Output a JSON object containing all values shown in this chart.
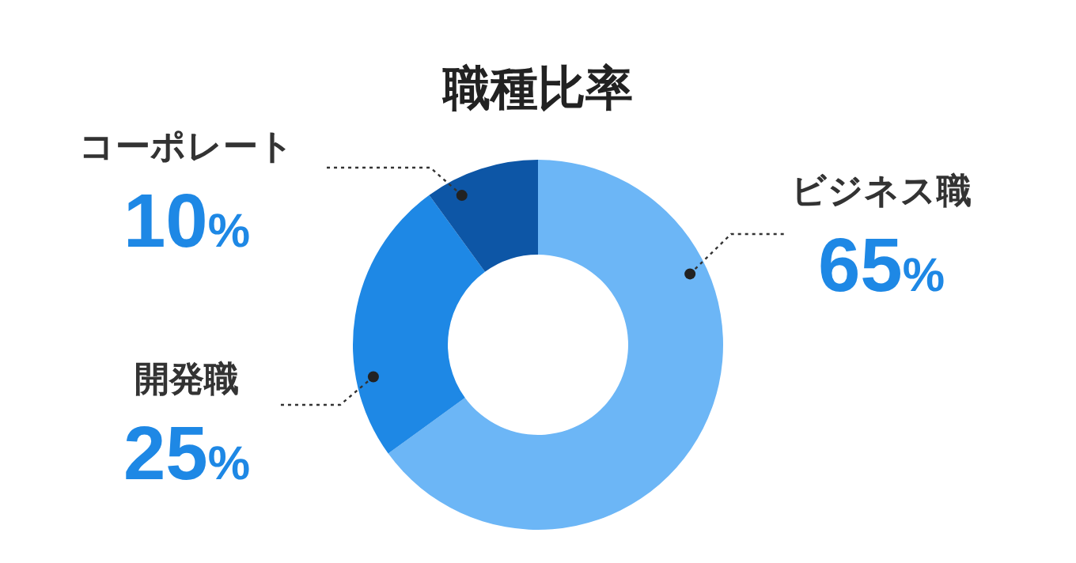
{
  "chart_data": {
    "type": "donut",
    "title": "職種比率",
    "categories": [
      "ビジネス職",
      "開発職",
      "コーポレート"
    ],
    "values": [
      65,
      25,
      10
    ],
    "value_labels": [
      "65%",
      "25%",
      "10%"
    ],
    "colors": [
      "#6cb6f6",
      "#1e88e5",
      "#0d56a6"
    ]
  }
}
